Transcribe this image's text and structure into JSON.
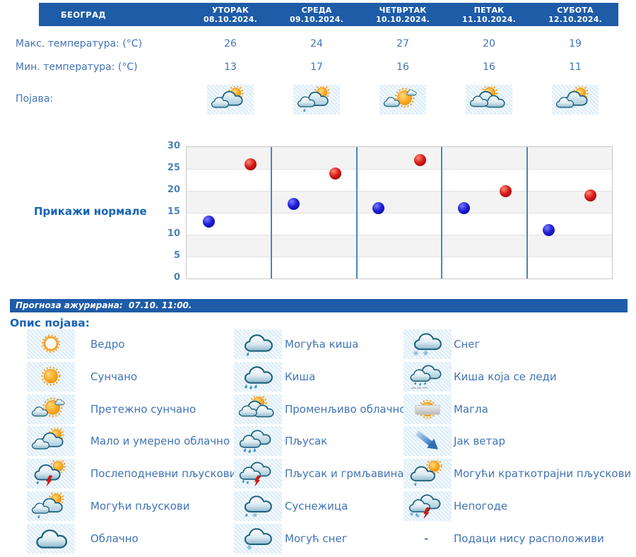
{
  "header": {
    "city": "БЕОГРАД",
    "days": [
      {
        "name": "УТОРАК",
        "date": "08.10.2024."
      },
      {
        "name": "СРЕДА",
        "date": "09.10.2024."
      },
      {
        "name": "ЧЕТВРТАК",
        "date": "10.10.2024."
      },
      {
        "name": "ПЕТАК",
        "date": "11.10.2024."
      },
      {
        "name": "СУБОТА",
        "date": "12.10.2024."
      }
    ]
  },
  "rows": {
    "max_label": "Макс. температура: (°C)",
    "min_label": "Мин. температура: (°C)",
    "phenomena_label": "Појава:",
    "max_values": [
      26,
      24,
      27,
      20,
      19
    ],
    "min_values": [
      13,
      17,
      16,
      16,
      11
    ],
    "phenomena_icons": [
      "partly-cloudy",
      "possible-showers",
      "mostly-sunny",
      "variable-clouds",
      "partly-cloudy"
    ]
  },
  "chart": {
    "normals_link": "Прикажи нормале"
  },
  "chart_data": {
    "type": "scatter",
    "categories": [
      "УТОРАК 08.10.2024.",
      "СРЕДА 09.10.2024.",
      "ЧЕТВРТАК 10.10.2024.",
      "ПЕТАК 11.10.2024.",
      "СУБОТА 12.10.2024."
    ],
    "series": [
      {
        "name": "Макс. температура (°C)",
        "color": "#CC1111",
        "values": [
          26,
          24,
          27,
          20,
          19
        ]
      },
      {
        "name": "Мин. температура (°C)",
        "color": "#1414CC",
        "values": [
          13,
          17,
          16,
          16,
          11
        ]
      }
    ],
    "ylim": [
      0,
      30
    ],
    "yticks": [
      0,
      5,
      10,
      15,
      20,
      25,
      30
    ],
    "grid": true,
    "band_colors": [
      "#F3F3F3",
      "#FFFFFF"
    ],
    "day_separator_color": "#4E86B4"
  },
  "updated_bar": {
    "text": "Прогноза ажурирана:  07.10. 11:00."
  },
  "legend": {
    "title": "Опис појава:",
    "columns": [
      [
        {
          "icon": "clear",
          "label": "Ведро"
        },
        {
          "icon": "sunny",
          "label": "Сунчано"
        },
        {
          "icon": "mostly-sunny",
          "label": "Претежно сунчано"
        },
        {
          "icon": "partly-cloudy",
          "label": "Мало и умерено облачно"
        },
        {
          "icon": "afternoon-showers",
          "label": "Послеподневни пљускови"
        },
        {
          "icon": "possible-showers",
          "label": "Могући пљускови"
        },
        {
          "icon": "cloudy",
          "label": "Облачно"
        }
      ],
      [
        {
          "icon": "possible-rain",
          "label": "Могућа киша"
        },
        {
          "icon": "rain",
          "label": "Киша"
        },
        {
          "icon": "variable-clouds",
          "label": "Променљиво облачно"
        },
        {
          "icon": "shower",
          "label": "Пљусак"
        },
        {
          "icon": "shower-thunder",
          "label": "Пљусак и грмљавина"
        },
        {
          "icon": "sleet",
          "label": "Суснежица"
        },
        {
          "icon": "possible-snow",
          "label": "Могућ снег"
        }
      ],
      [
        {
          "icon": "snow",
          "label": "Снег"
        },
        {
          "icon": "freezing-rain",
          "label": "Киша која се леди"
        },
        {
          "icon": "fog",
          "label": "Магла"
        },
        {
          "icon": "strong-wind",
          "label": "Јак ветар"
        },
        {
          "icon": "short-showers",
          "label": "Могући краткотрајни пљускови"
        },
        {
          "icon": "storms",
          "label": "Непогоде"
        },
        {
          "icon": "dash",
          "label": "Подаци нису расположиви"
        }
      ]
    ]
  },
  "colors": {
    "header_bg": "#1E5CA8",
    "text_blue": "#4174B6",
    "link_blue": "#1663B5",
    "dot_max": "#CC1111",
    "dot_min": "#1414CC",
    "icon_cell_bg": "#E8F3FA"
  }
}
